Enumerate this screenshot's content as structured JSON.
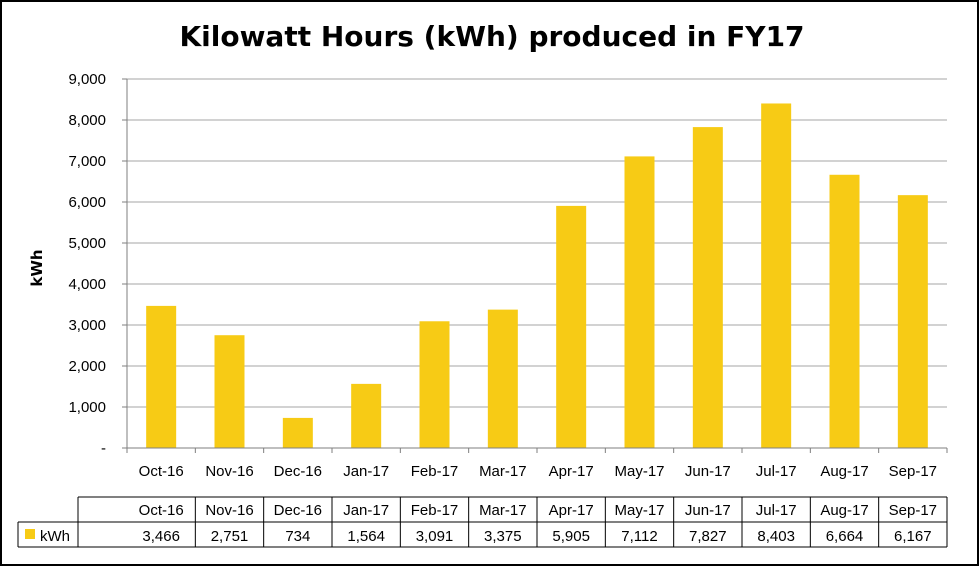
{
  "chart_data": {
    "type": "bar",
    "title": "Kilowatt Hours (kWh) produced in FY17",
    "ylabel": "kWh",
    "xlabel": "",
    "categories": [
      "Oct-16",
      "Nov-16",
      "Dec-16",
      "Jan-17",
      "Feb-17",
      "Mar-17",
      "Apr-17",
      "May-17",
      "Jun-17",
      "Jul-17",
      "Aug-17",
      "Sep-17"
    ],
    "series": [
      {
        "name": "kWh",
        "values": [
          3466,
          2751,
          734,
          1564,
          3091,
          3375,
          5905,
          7112,
          7827,
          8403,
          6664,
          6167
        ],
        "color": "#F7CB15"
      }
    ],
    "ylim": [
      0,
      9000
    ],
    "yticks": [
      0,
      1000,
      2000,
      3000,
      4000,
      5000,
      6000,
      7000,
      8000,
      9000
    ],
    "ytick_labels": [
      "-",
      "1,000",
      "2,000",
      "3,000",
      "4,000",
      "5,000",
      "6,000",
      "7,000",
      "8,000",
      "9,000"
    ],
    "data_table": {
      "row_label": "kWh",
      "values_text": [
        "3,466",
        "2,751",
        "734",
        "1,564",
        "3,091",
        "3,375",
        "5,905",
        "7,112",
        "7,827",
        "8,403",
        "6,664",
        "6,167"
      ]
    },
    "grid": true,
    "legend": "data-table"
  }
}
